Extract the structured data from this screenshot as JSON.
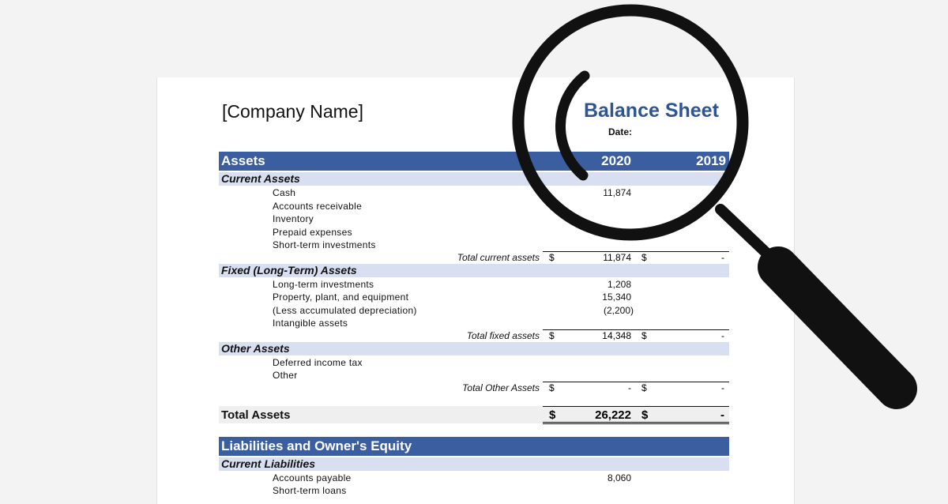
{
  "company_name": "[Company Name]",
  "title": "Balance Sheet",
  "date_label": "Date:",
  "assets": {
    "header": "Assets",
    "year1": "2020",
    "year2": "2019",
    "current": {
      "label": "Current Assets",
      "items": [
        "Cash",
        "Accounts receivable",
        "Inventory",
        "Prepaid expenses",
        "Short-term investments"
      ],
      "cash_value": "11,874",
      "total_label": "Total current assets",
      "total_dollar": "$",
      "total_2020": "11,874",
      "total_2019": "-"
    },
    "fixed": {
      "label": "Fixed (Long-Term) Assets",
      "items": [
        "Long-term investments",
        "Property, plant, and equipment",
        "(Less accumulated depreciation)",
        "Intangible assets"
      ],
      "values": [
        "1,208",
        "15,340",
        "(2,200)",
        ""
      ],
      "total_label": "Total fixed assets",
      "total_dollar": "$",
      "total_2020": "14,348",
      "total_2019": "-"
    },
    "other": {
      "label": "Other Assets",
      "items": [
        "Deferred income tax",
        "Other"
      ],
      "total_label": "Total Other Assets",
      "total_dollar": "$",
      "total_2020": "-",
      "total_2019": "-"
    },
    "grand": {
      "label": "Total Assets",
      "dollar": "$",
      "value_2020": "26,222",
      "value_2019": "-"
    }
  },
  "liabilities": {
    "header": "Liabilities and Owner's Equity",
    "current": {
      "label": "Current Liabilities",
      "items": [
        "Accounts payable",
        "Short-term loans"
      ],
      "values": [
        "8,060",
        ""
      ]
    }
  },
  "icons": {
    "magnifier": "magnifying-glass-icon"
  }
}
